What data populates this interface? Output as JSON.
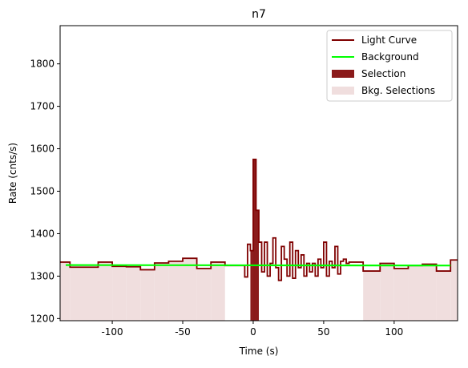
{
  "chart_data": {
    "type": "step",
    "title": "n7",
    "xlabel": "Time (s)",
    "ylabel": "Rate (cnts/s)",
    "xlim": [
      -137,
      145
    ],
    "ylim": [
      1195,
      1890
    ],
    "xticks": [
      -100,
      -50,
      0,
      50,
      100
    ],
    "yticks": [
      1200,
      1300,
      1400,
      1500,
      1600,
      1700,
      1800
    ],
    "series": [
      {
        "name": "Light Curve",
        "color": "#7f0000",
        "x": [
          -137,
          -130,
          -110,
          -100,
          -90,
          -80,
          -70,
          -60,
          -50,
          -40,
          -30,
          -20,
          -10,
          -6,
          -4,
          -2,
          0,
          2,
          4,
          6,
          8,
          10,
          12,
          14,
          16,
          18,
          20,
          22,
          24,
          26,
          28,
          30,
          32,
          34,
          36,
          38,
          40,
          42,
          44,
          46,
          48,
          50,
          52,
          54,
          56,
          58,
          60,
          62,
          64,
          66,
          68,
          70,
          78,
          90,
          100,
          110,
          120,
          130,
          140,
          145
        ],
        "values": [
          1333,
          1321,
          1333,
          1323,
          1322,
          1315,
          1331,
          1335,
          1342,
          1318,
          1333,
          1325,
          1325,
          1298,
          1375,
          1360,
          1575,
          1455,
          1380,
          1310,
          1380,
          1300,
          1330,
          1390,
          1320,
          1290,
          1370,
          1340,
          1300,
          1380,
          1295,
          1360,
          1320,
          1350,
          1300,
          1330,
          1310,
          1330,
          1300,
          1340,
          1320,
          1380,
          1300,
          1335,
          1320,
          1370,
          1305,
          1335,
          1340,
          1330,
          1333,
          1333,
          1312,
          1330,
          1318,
          1325,
          1328,
          1312,
          1338,
          1338
        ]
      },
      {
        "name": "Background",
        "color": "#00ff00",
        "x": [
          -133,
          140
        ],
        "values": [
          1326,
          1325
        ]
      }
    ],
    "selection": {
      "name": "Selection",
      "color": "#8b1a1a",
      "range": [
        -2,
        4
      ]
    },
    "bkg_selections": {
      "name": "Bkg. Selections",
      "color": "#f0dede",
      "ranges": [
        [
          -137,
          -20
        ],
        [
          78,
          145
        ]
      ]
    }
  }
}
